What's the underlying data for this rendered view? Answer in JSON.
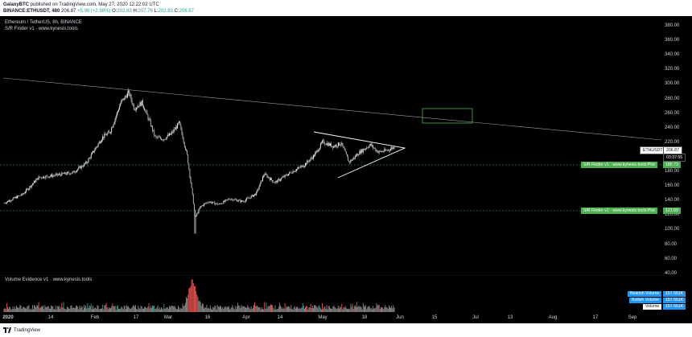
{
  "publish": {
    "author": "GalaxyBTC",
    "text": "published on TradingView.com, May 27, 2020 12:22:02 UTC"
  },
  "quote": {
    "symbol": "BINANCE:ETHUSDT, 480",
    "last": "206.87",
    "change": "+5.98 (+2.98%)",
    "o_label": "O:",
    "o": "202.83",
    "h_label": "H:",
    "h": "207.76",
    "l_label": "L:",
    "l": "202.83",
    "c_label": "C:",
    "c": "206.87"
  },
  "chart_title": "Ethereum / TetherUS, 8h, BINANCE",
  "indicator_label": "S/R Finder v1 · www.kynesis.tools",
  "volume_label": "Volume Evidence v1 · www.kynesis.tools",
  "price_axis": [
    "380.00",
    "360.00",
    "340.00",
    "320.00",
    "300.00",
    "280.00",
    "260.00",
    "240.00",
    "220.00",
    "200.00",
    "180.00",
    "160.00",
    "140.00",
    "120.00",
    "100.00",
    "80.00",
    "60.00",
    "40.00"
  ],
  "time_axis": [
    "2020",
    "14",
    "Feb",
    "17",
    "Mar",
    "16",
    "Apr",
    "14",
    "May",
    "18",
    "Jun",
    "15",
    "Jul",
    "13",
    "Aug",
    "17",
    "Sep"
  ],
  "tags": {
    "symbol_tag": "ETHUSDT",
    "price_tag": "206.87",
    "countdown": "03:37:55",
    "sr_upper_label": "S/R Finder v1 · www.kynesis.tools:Plot",
    "sr_upper_value": "185.73",
    "sr_lower_label": "S/R Finder v1 · www.kynesis.tools:Plot",
    "sr_lower_value": "121.69"
  },
  "volume_legend": [
    {
      "label": "Bearish Volume",
      "value": "157.551K"
    },
    {
      "label": "Bullish Volume",
      "value": "157.551K"
    },
    {
      "label": "Volume",
      "value": "157.551K"
    }
  ],
  "footer": {
    "brand": "TradingView"
  },
  "colors": {
    "support": "#4caf50",
    "triangle": "#ffffff",
    "box": "#4caf50",
    "trendline": "#9e9e9e",
    "candle": "#ffffff",
    "bear_vol": "#ef5350",
    "bull_vol": "#26a69a"
  },
  "chart_data": {
    "type": "candlestick",
    "title": "Ethereum / TetherUS, 8h, BINANCE",
    "ylim": [
      40,
      390
    ],
    "y_scale": "linear",
    "support_levels": [
      185.73,
      121.69
    ],
    "price_path": [
      [
        "2020-01-01",
        130
      ],
      [
        "2020-01-08",
        142
      ],
      [
        "2020-01-14",
        165
      ],
      [
        "2020-01-20",
        168
      ],
      [
        "2020-01-27",
        172
      ],
      [
        "2020-02-01",
        185
      ],
      [
        "2020-02-07",
        220
      ],
      [
        "2020-02-10",
        228
      ],
      [
        "2020-02-14",
        268
      ],
      [
        "2020-02-17",
        282
      ],
      [
        "2020-02-19",
        260
      ],
      [
        "2020-02-22",
        268
      ],
      [
        "2020-02-25",
        240
      ],
      [
        "2020-02-27",
        220
      ],
      [
        "2020-03-01",
        218
      ],
      [
        "2020-03-04",
        225
      ],
      [
        "2020-03-07",
        240
      ],
      [
        "2020-03-10",
        195
      ],
      [
        "2020-03-12",
        140
      ],
      [
        "2020-03-13",
        110
      ],
      [
        "2020-03-15",
        125
      ],
      [
        "2020-03-18",
        132
      ],
      [
        "2020-03-22",
        128
      ],
      [
        "2020-03-26",
        136
      ],
      [
        "2020-03-31",
        132
      ],
      [
        "2020-04-05",
        143
      ],
      [
        "2020-04-08",
        170
      ],
      [
        "2020-04-12",
        158
      ],
      [
        "2020-04-18",
        172
      ],
      [
        "2020-04-23",
        182
      ],
      [
        "2020-04-27",
        196
      ],
      [
        "2020-04-30",
        214
      ],
      [
        "2020-05-04",
        208
      ],
      [
        "2020-05-07",
        212
      ],
      [
        "2020-05-10",
        186
      ],
      [
        "2020-05-14",
        200
      ],
      [
        "2020-05-18",
        210
      ],
      [
        "2020-05-21",
        200
      ],
      [
        "2020-05-24",
        202
      ],
      [
        "2020-05-27",
        206.87
      ]
    ]
  }
}
